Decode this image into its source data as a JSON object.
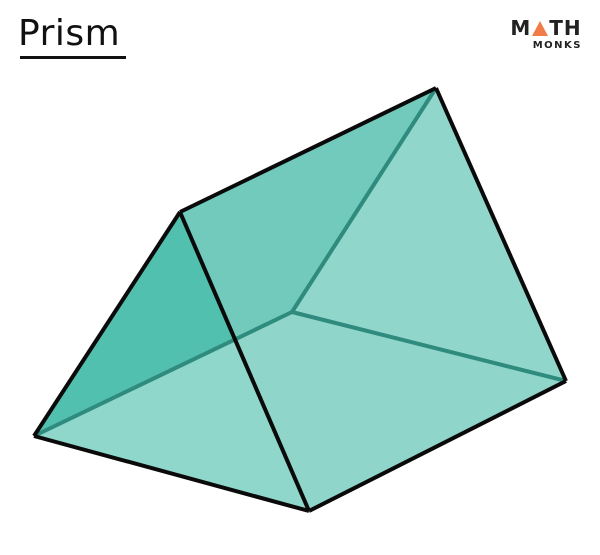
{
  "title": "Prism",
  "logo": {
    "word_left": "M",
    "triangle_icon": "triangle-a-icon",
    "word_right": "TH",
    "subtitle": "MONKS",
    "accent_color": "#f07c4a"
  },
  "colors": {
    "face_dark": "#4dbdab",
    "face_light": "#8fd6cb",
    "hidden_edge": "#2e8b7e",
    "edge": "#0a0a0a"
  }
}
